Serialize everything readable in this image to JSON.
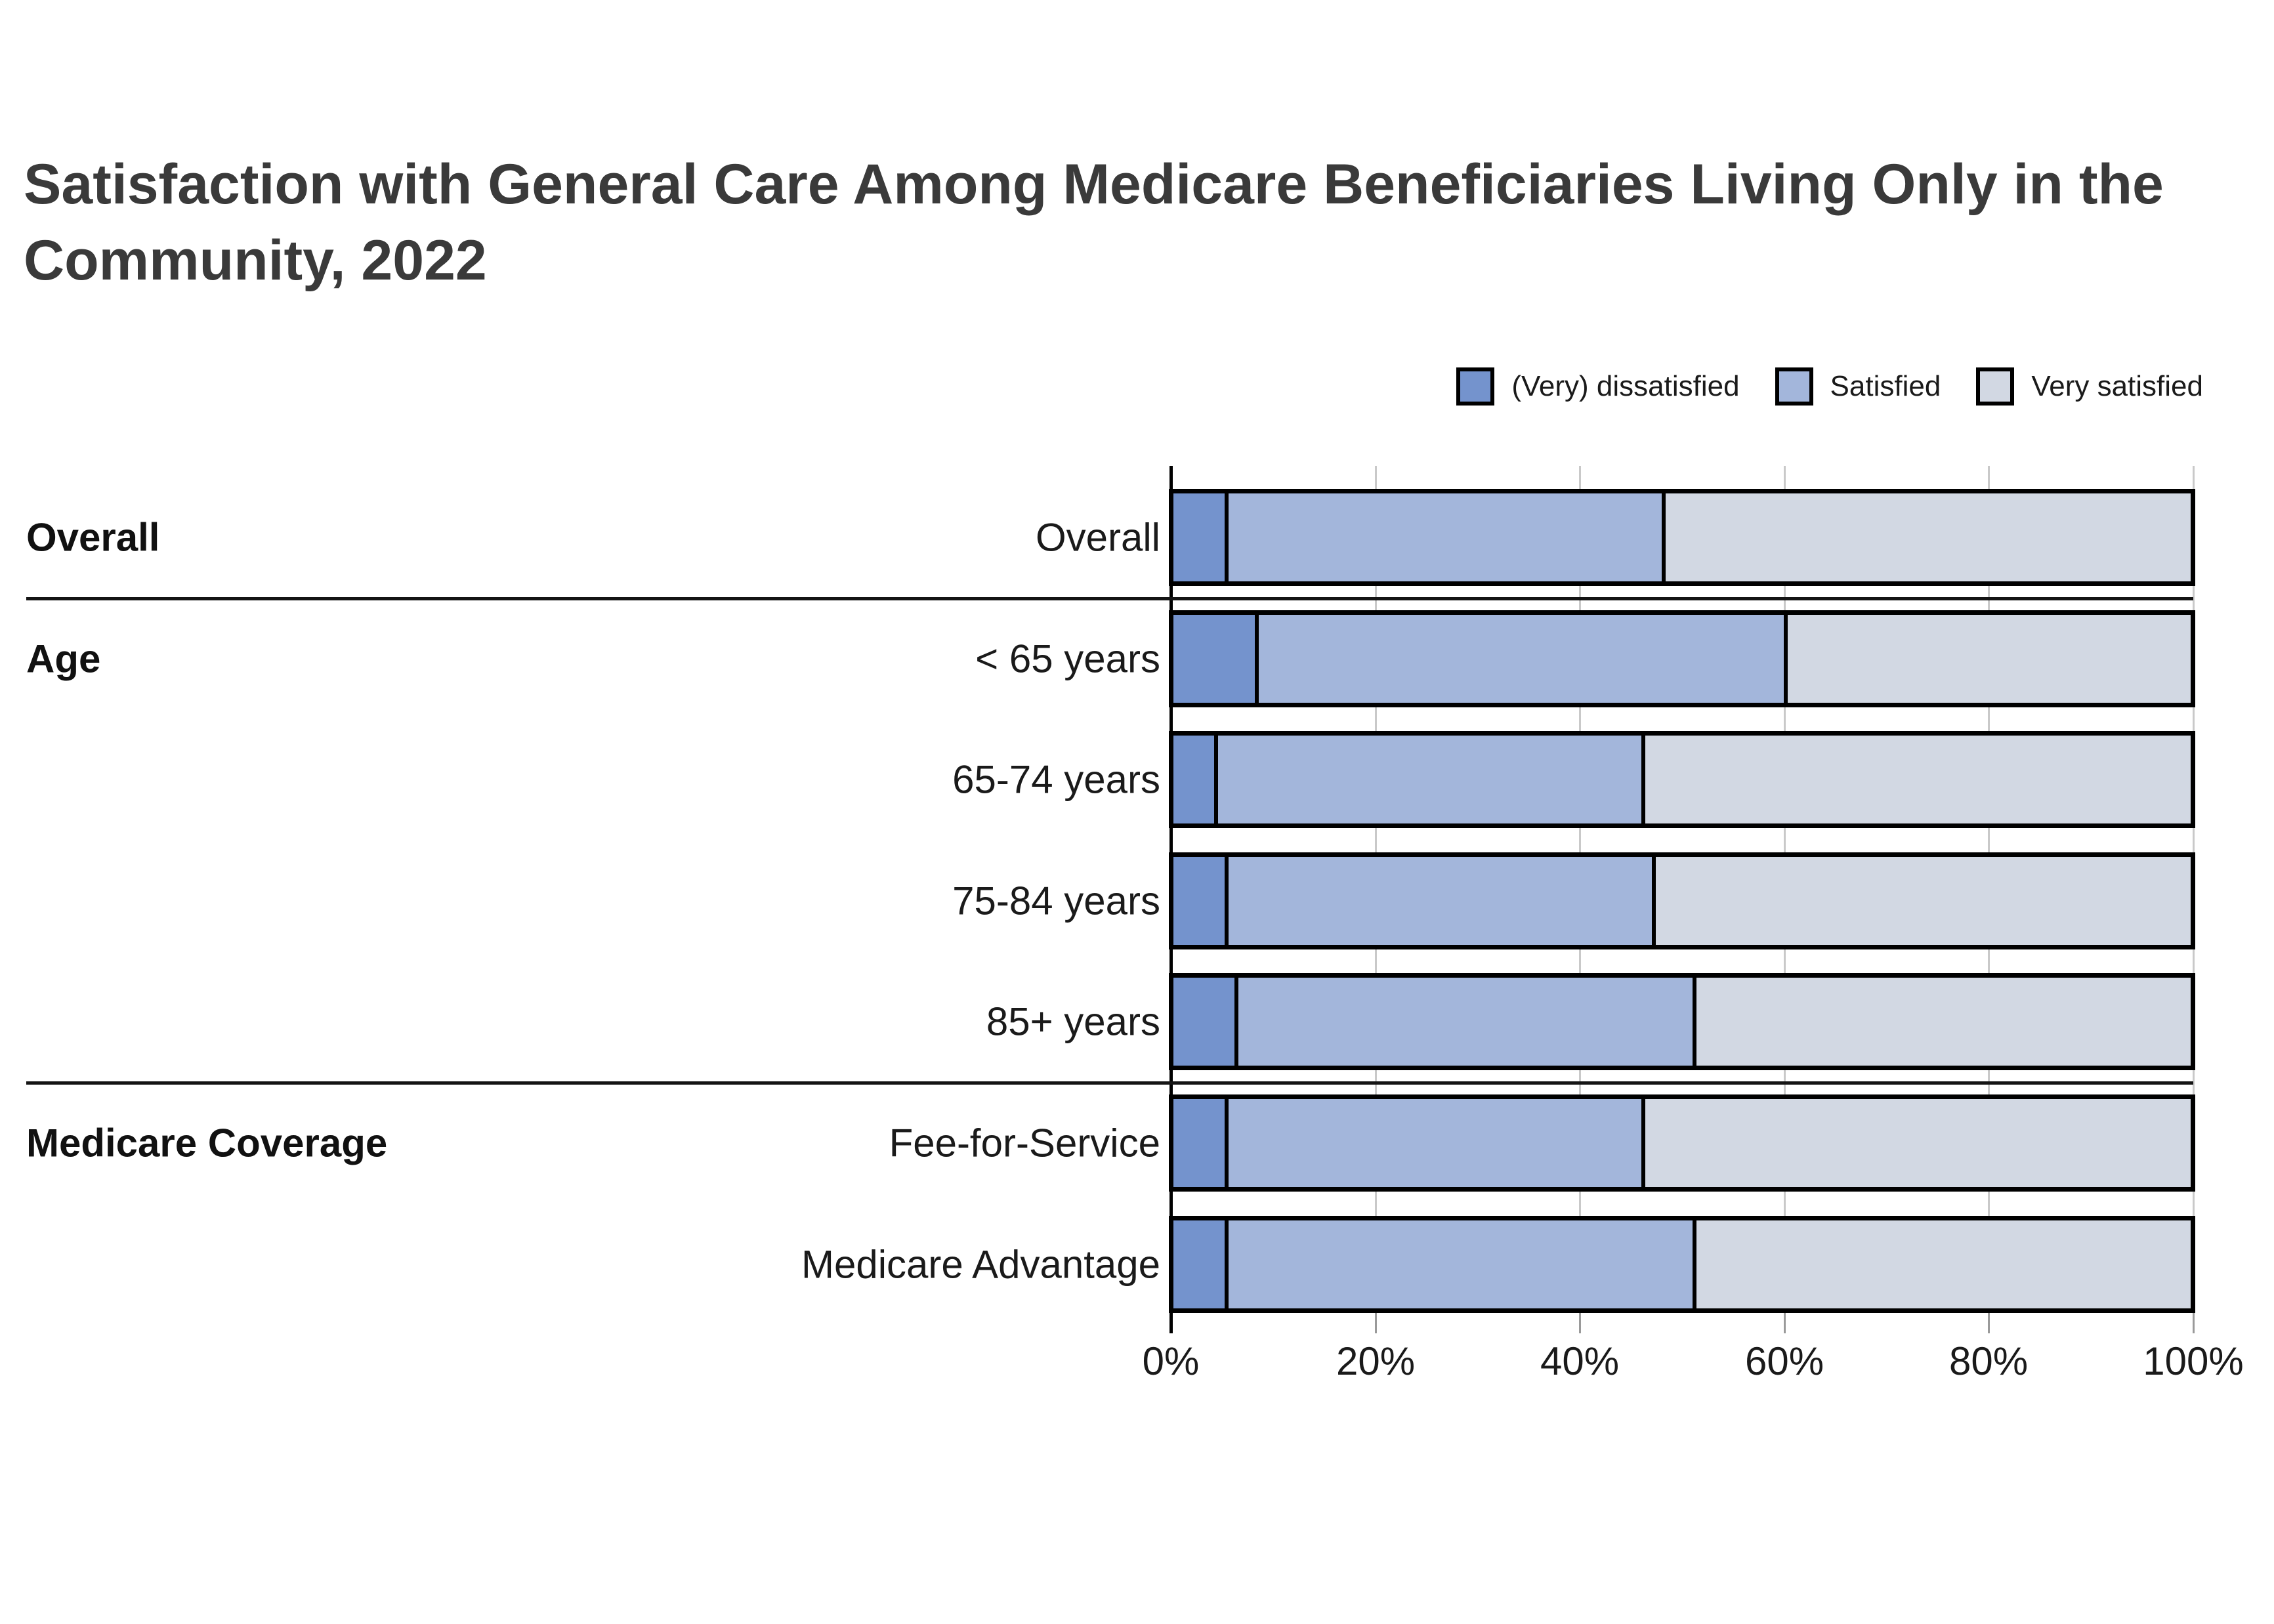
{
  "title_lines": [
    "Satisfaction with General Care Among Medicare Beneficiaries Living Only in the",
    "Community, 2022"
  ],
  "chart_data": {
    "type": "bar",
    "stacked": true,
    "orientation": "horizontal",
    "title": "Satisfaction with General Care Among Medicare Beneficiaries Living Only in the Community, 2022",
    "categories": [
      "Overall",
      "< 65 years",
      "65-74 years",
      "75-84 years",
      "85+ years",
      "Fee-for-Service",
      "Medicare Advantage"
    ],
    "groups": [
      {
        "label": "Overall",
        "rows": [
          0
        ]
      },
      {
        "label": "Age",
        "rows": [
          1,
          2,
          3,
          4
        ]
      },
      {
        "label": "Medicare Coverage",
        "rows": [
          5,
          6
        ]
      }
    ],
    "series": [
      {
        "name": "(Very) dissatisfied",
        "color": "#7493CD",
        "values": [
          5,
          8,
          4,
          5,
          6,
          5,
          5
        ]
      },
      {
        "name": "Satisfied",
        "color": "#A3B6DB",
        "values": [
          43,
          52,
          42,
          42,
          45,
          41,
          46
        ]
      },
      {
        "name": "Very satisfied",
        "color": "#D2D8E3",
        "values": [
          52,
          40,
          54,
          53,
          49,
          54,
          49
        ]
      }
    ],
    "x_ticks": [
      "0%",
      "20%",
      "40%",
      "60%",
      "80%",
      "100%"
    ],
    "xlim": [
      0,
      100
    ],
    "grid": true,
    "legend_position": "top-right",
    "gridline_color": "#C9C9C9",
    "bar_border_color": "#000000"
  }
}
